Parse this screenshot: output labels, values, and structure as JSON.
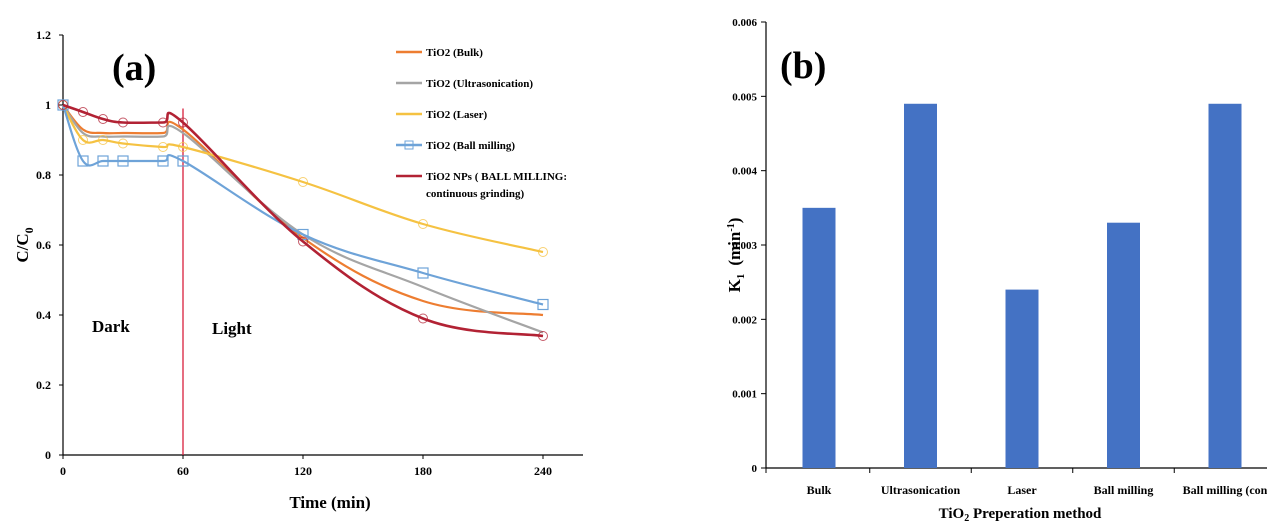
{
  "chart_data": [
    {
      "type": "line",
      "panel_label": "(a)",
      "xlabel": "Time (min)",
      "ylabel": "C/C",
      "ylabel_subscript": "0",
      "xlim": [
        0,
        260
      ],
      "ylim": [
        0,
        1.2
      ],
      "x_ticks": [
        0,
        60,
        120,
        180,
        240
      ],
      "y_ticks": [
        0,
        0.2,
        0.4,
        0.6,
        0.8,
        1,
        1.2
      ],
      "y_tick_labels": [
        "0",
        "0.2",
        "0.4",
        "0.6",
        "0.8",
        "1",
        "1.2"
      ],
      "grid": false,
      "legend_position": "top-right",
      "annotations": {
        "dark": "Dark",
        "light": "Light",
        "divider_x": 60
      },
      "x": [
        0,
        10,
        20,
        30,
        50,
        60,
        120,
        180,
        240
      ],
      "series": [
        {
          "name": "TiO2 (Bulk)",
          "color": "#ed7d31",
          "marker": "none",
          "values": [
            1.0,
            0.93,
            0.92,
            0.92,
            0.92,
            0.93,
            0.62,
            0.44,
            0.4
          ]
        },
        {
          "name": "TiO2 (Ultrasonication)",
          "color": "#a5a5a5",
          "marker": "none",
          "values": [
            1.0,
            0.92,
            0.91,
            0.91,
            0.91,
            0.92,
            0.63,
            0.48,
            0.35
          ]
        },
        {
          "name": "TiO2 (Laser)",
          "color": "#f5c242",
          "marker": "circle",
          "values": [
            1.0,
            0.9,
            0.9,
            0.89,
            0.88,
            0.88,
            0.78,
            0.66,
            0.58
          ]
        },
        {
          "name": "TiO2 (Ball milling)",
          "color": "#6ea3d8",
          "marker": "square",
          "values": [
            1.0,
            0.84,
            0.84,
            0.84,
            0.84,
            0.84,
            0.63,
            0.52,
            0.43
          ]
        },
        {
          "name": "TiO2 NPs ( BALL MILLING:",
          "name_line2": "continuous grinding)",
          "color": "#b22234",
          "marker": "circle",
          "values": [
            1.0,
            0.98,
            0.96,
            0.95,
            0.95,
            0.95,
            0.61,
            0.39,
            0.34
          ]
        }
      ]
    },
    {
      "type": "bar",
      "panel_label": "(b)",
      "xlabel": "TiO",
      "xlabel_subscript": "2",
      "xlabel_rest": " Preperation method",
      "ylabel": "K",
      "ylabel_subscript": "1",
      "ylabel_unit": "(min",
      "ylabel_unit_sup": "-1",
      "ylabel_unit_close": ")",
      "ylim": [
        0,
        0.006
      ],
      "y_ticks": [
        0,
        0.001,
        0.002,
        0.003,
        0.004,
        0.005,
        0.006
      ],
      "y_tick_labels": [
        "0",
        "0.001",
        "0.002",
        "0.003",
        "0.004",
        "0.005",
        "0.006"
      ],
      "grid": false,
      "bar_color": "#4472c4",
      "xlabel_color": "#e03030",
      "categories": [
        "Bulk",
        "Ultrasonication",
        "Laser",
        "Ball milling",
        "Ball milling (con"
      ],
      "values": [
        0.0035,
        0.0049,
        0.0024,
        0.0033,
        0.0049
      ]
    }
  ]
}
